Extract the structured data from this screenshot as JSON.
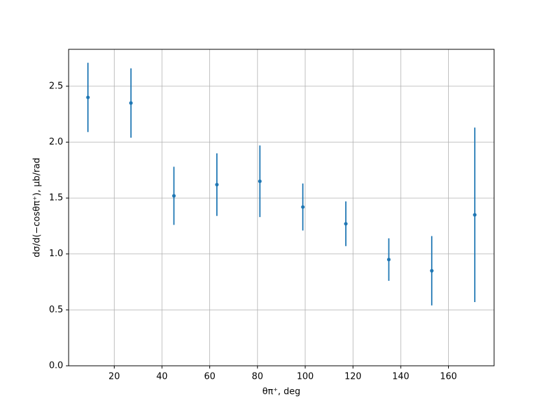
{
  "chart_data": {
    "type": "errorbar",
    "x_label": "θπ⁺, deg",
    "y_label": "dσ/d(−cosθπ⁺), μb/rad",
    "series": [
      {
        "color": "#1f77b4",
        "x": [
          9,
          27,
          45,
          63,
          81,
          99,
          117,
          135,
          153,
          171
        ],
        "values": [
          2.4,
          2.35,
          1.52,
          1.62,
          1.65,
          1.42,
          1.27,
          0.95,
          0.85,
          1.35
        ],
        "errors": [
          0.31,
          0.31,
          0.26,
          0.28,
          0.32,
          0.21,
          0.2,
          0.19,
          0.31,
          0.78
        ]
      }
    ],
    "xlim": [
      0.9,
      179.1
    ],
    "ylim": [
      0,
      2.83
    ],
    "xticks": [
      20,
      40,
      60,
      80,
      100,
      120,
      140,
      160
    ],
    "yticks": [
      {
        "value": 0,
        "label": "0.0"
      },
      0.5,
      {
        "value": 1,
        "label": "1.0"
      },
      1.5,
      {
        "value": 2,
        "label": "2.0"
      },
      2.5
    ],
    "grid": true
  }
}
